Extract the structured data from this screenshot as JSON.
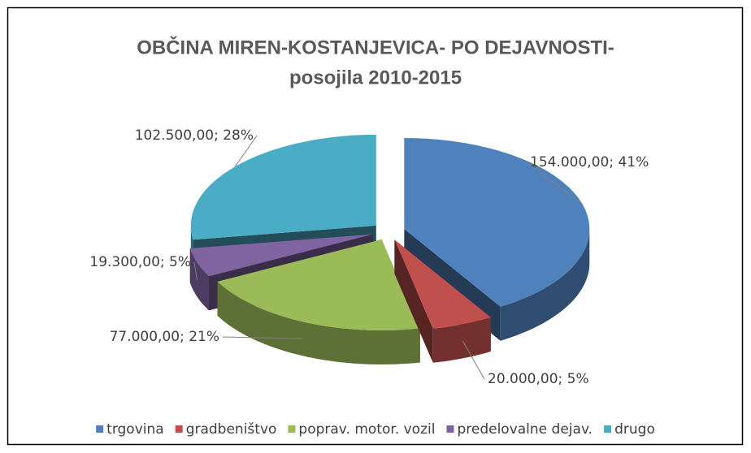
{
  "chart_data": {
    "type": "pie3d",
    "title": [
      "OBČINA MIREN-KOSTANJEVICA- PO DEJAVNOSTI-",
      "posojila 2010-2015"
    ],
    "categories": [
      "trgovina",
      "gradbeništvo",
      "poprav. motor. vozil",
      "predelovalne dejav.",
      "drugo"
    ],
    "values": [
      154000,
      20000,
      77000,
      19300,
      102500
    ],
    "value_labels": [
      "154.000,00; 41%",
      "20.000,00; 5%",
      "77.000,00; 21%",
      "19.300,00; 5%",
      "102.500,00; 28%"
    ],
    "colors": [
      "#4f81bd",
      "#c0504d",
      "#9bbb59",
      "#8064a2",
      "#4bacc6"
    ],
    "legend": "bottom"
  }
}
